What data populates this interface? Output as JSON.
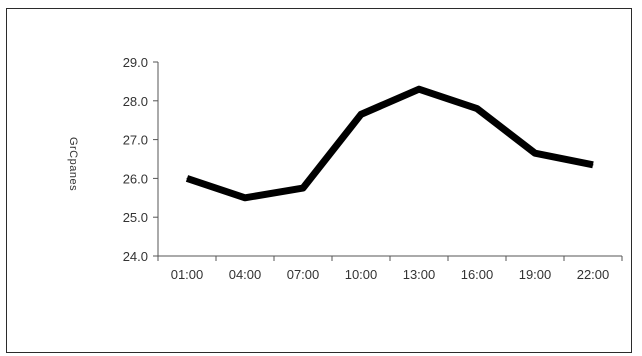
{
  "chart_data": {
    "type": "line",
    "title": "",
    "xlabel": "",
    "ylabel": "GrCpanes",
    "categories": [
      "01:00",
      "04:00",
      "07:00",
      "10:00",
      "13:00",
      "16:00",
      "19:00",
      "22:00"
    ],
    "series": [
      {
        "values": [
          26.0,
          25.5,
          25.75,
          27.65,
          28.3,
          27.8,
          26.65,
          26.35
        ]
      }
    ],
    "ylim": [
      24.0,
      29.0
    ],
    "yticks": [
      "24.0",
      "25.0",
      "26.0",
      "27.0",
      "28.0",
      "29.0"
    ],
    "grid": false,
    "legend": "none",
    "line_color": "#000000",
    "axis_color": "#555555"
  }
}
